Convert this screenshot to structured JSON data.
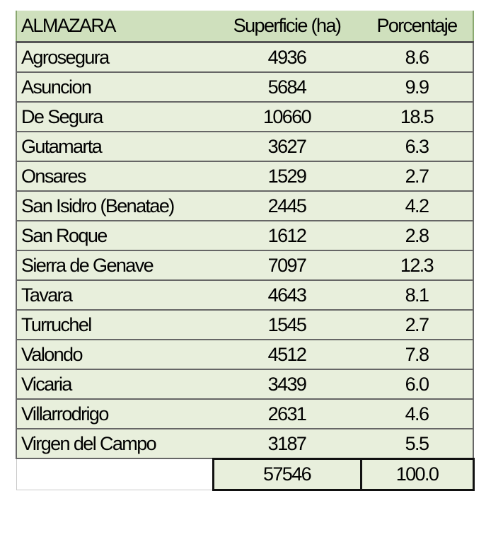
{
  "table": {
    "headers": [
      "ALMAZARA",
      "Superficie (ha)",
      "Porcentaje"
    ],
    "rows": [
      [
        "Agrosegura",
        "4936",
        "8.6"
      ],
      [
        "Asuncion",
        "5684",
        "9.9"
      ],
      [
        "De Segura",
        "10660",
        "18.5"
      ],
      [
        "Gutamarta",
        "3627",
        "6.3"
      ],
      [
        "Onsares",
        "1529",
        "2.7"
      ],
      [
        "San Isidro (Benatae)",
        "2445",
        "4.2"
      ],
      [
        "San Roque",
        "1612",
        "2.8"
      ],
      [
        "Sierra de Genave",
        "7097",
        "12.3"
      ],
      [
        "Tavara",
        "4643",
        "8.1"
      ],
      [
        "Turruchel",
        "1545",
        "2.7"
      ],
      [
        "Valondo",
        "4512",
        "7.8"
      ],
      [
        "Vicaria",
        "3439",
        "6.0"
      ],
      [
        "Villarrodrigo",
        "2631",
        "4.6"
      ],
      [
        "Virgen del Campo",
        "3187",
        "5.5"
      ]
    ],
    "totals": {
      "label": "",
      "superficie": "57546",
      "porcentaje": "100.0"
    }
  },
  "colors": {
    "header_bg": "#cfe0bd",
    "row_bg": "#e8efdc"
  }
}
